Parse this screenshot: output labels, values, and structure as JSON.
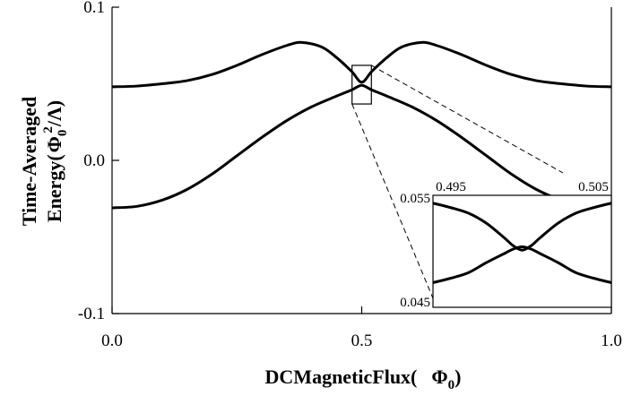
{
  "chart_data": {
    "type": "line",
    "xlabel": "DCMagneticFlux(",
    "xlabel_symbol": "Φ",
    "xlabel_sub": "0",
    "xlabel_close": ")",
    "ylabel_line1": "Time-Averaged",
    "ylabel_line2_prefix": "Energy(",
    "ylabel_symbol": "Φ",
    "ylabel_sub": "0",
    "ylabel_sup": "2",
    "ylabel_suffix": "/Λ)",
    "xlim": [
      0.0,
      1.0
    ],
    "ylim": [
      -0.1,
      0.1
    ],
    "x_ticks": [
      {
        "value": 0.0,
        "label": "0.0"
      },
      {
        "value": 0.5,
        "label": "0.5"
      },
      {
        "value": 1.0,
        "label": "1.0"
      }
    ],
    "y_ticks": [
      {
        "value": 0.1,
        "label": "0.1"
      },
      {
        "value": 0.0,
        "label": "0.0"
      },
      {
        "value": -0.1,
        "label": "-0.1"
      }
    ],
    "series": [
      {
        "x": [
          0.0,
          0.05,
          0.1,
          0.15,
          0.2,
          0.25,
          0.3,
          0.35,
          0.38,
          0.42,
          0.45,
          0.48,
          0.5,
          0.52,
          0.55,
          0.58,
          0.62,
          0.65,
          0.7,
          0.75,
          0.8,
          0.85,
          0.9,
          0.95,
          1.0
        ],
        "y": [
          0.048,
          0.0485,
          0.05,
          0.052,
          0.056,
          0.062,
          0.069,
          0.075,
          0.077,
          0.074,
          0.067,
          0.058,
          0.051,
          0.058,
          0.067,
          0.074,
          0.077,
          0.075,
          0.069,
          0.062,
          0.056,
          0.052,
          0.05,
          0.0485,
          0.048
        ]
      },
      {
        "x": [
          0.0,
          0.05,
          0.1,
          0.15,
          0.2,
          0.25,
          0.3,
          0.35,
          0.4,
          0.45,
          0.48,
          0.5,
          0.52,
          0.55,
          0.6,
          0.65,
          0.7,
          0.75,
          0.8,
          0.85,
          0.9,
          0.95,
          1.0
        ],
        "y": [
          -0.031,
          -0.03,
          -0.026,
          -0.019,
          -0.009,
          0.003,
          0.015,
          0.026,
          0.035,
          0.042,
          0.046,
          0.049,
          0.046,
          0.042,
          0.035,
          0.026,
          0.015,
          0.003,
          -0.009,
          -0.019,
          -0.026,
          -0.03,
          -0.031
        ]
      }
    ],
    "zoom_box": {
      "x": [
        0.495,
        0.505
      ],
      "y": [
        0.045,
        0.055
      ]
    },
    "inset": {
      "xlim": [
        0.495,
        0.505
      ],
      "ylim": [
        0.045,
        0.055
      ],
      "x_ticks": [
        {
          "value": 0.495,
          "label": "0.495"
        },
        {
          "value": 0.505,
          "label": "0.505"
        }
      ],
      "y_ticks": [
        {
          "value": 0.055,
          "label": "0.055"
        },
        {
          "value": 0.045,
          "label": "0.045"
        }
      ],
      "series": [
        {
          "x": [
            0.495,
            0.496,
            0.497,
            0.498,
            0.499,
            0.4995,
            0.5,
            0.5005,
            0.501,
            0.502,
            0.503,
            0.504,
            0.505
          ],
          "y": [
            0.0543,
            0.0539,
            0.0534,
            0.0525,
            0.0512,
            0.0505,
            0.0501,
            0.0505,
            0.0512,
            0.0525,
            0.0534,
            0.0539,
            0.0543
          ]
        },
        {
          "x": [
            0.495,
            0.496,
            0.497,
            0.498,
            0.499,
            0.4995,
            0.5,
            0.5005,
            0.501,
            0.502,
            0.503,
            0.504,
            0.505
          ],
          "y": [
            0.0472,
            0.0476,
            0.0481,
            0.049,
            0.0498,
            0.0502,
            0.0504,
            0.0502,
            0.0498,
            0.049,
            0.0481,
            0.0476,
            0.0472
          ]
        }
      ]
    }
  }
}
